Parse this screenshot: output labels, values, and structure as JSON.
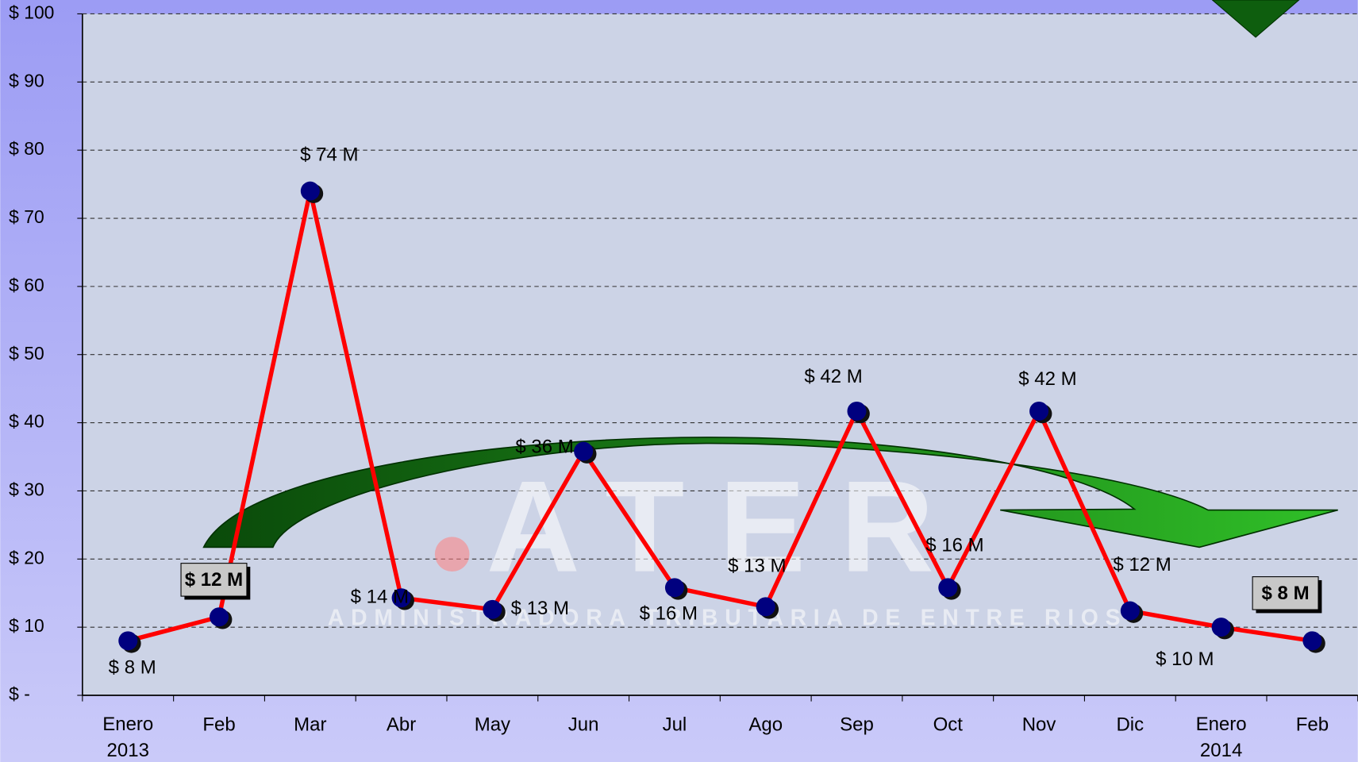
{
  "chart_data": {
    "type": "line",
    "categories": [
      "Enero 2013",
      "Feb",
      "Mar",
      "Abr",
      "May",
      "Jun",
      "Jul",
      "Ago",
      "Sep",
      "Oct",
      "Nov",
      "Dic",
      "Enero 2014",
      "Feb"
    ],
    "series": [
      {
        "color": "#ff0000",
        "values": [
          8,
          11.5,
          74,
          14.3,
          12.6,
          35.8,
          15.8,
          13,
          41.7,
          15.8,
          41.7,
          12.4,
          10,
          8
        ],
        "value_labels": [
          "$ 8 M",
          "$ 12 M",
          "$ 74 M",
          "$ 14 M",
          "$ 13 M",
          "$ 36 M",
          "$ 16 M",
          "$ 13 M",
          "$ 42 M",
          "$ 16 M",
          "$ 42 M",
          "$ 12 M",
          "$ 10 M",
          "$ 8 M"
        ]
      }
    ],
    "marker_color": "#00007f",
    "boxed_labels": [
      1,
      13
    ],
    "ylim": [
      0,
      100
    ],
    "yticks": [
      {
        "value": 0,
        "label": "$ -"
      },
      {
        "value": 10,
        "label": "$ 10"
      },
      {
        "value": 20,
        "label": "$ 20"
      },
      {
        "value": 30,
        "label": "$ 30"
      },
      {
        "value": 40,
        "label": "$ 40"
      },
      {
        "value": 50,
        "label": "$ 50"
      },
      {
        "value": 60,
        "label": "$ 60"
      },
      {
        "value": 70,
        "label": "$ 70"
      },
      {
        "value": 80,
        "label": "$ 80"
      },
      {
        "value": 90,
        "label": "$ 90"
      },
      {
        "value": 100,
        "label": "$ 100"
      }
    ],
    "grid": true,
    "watermark": {
      "logo": "ATER",
      "name": "ADMINISTRADORA TRIBUTARIA DE ENTRE RIOS"
    }
  }
}
